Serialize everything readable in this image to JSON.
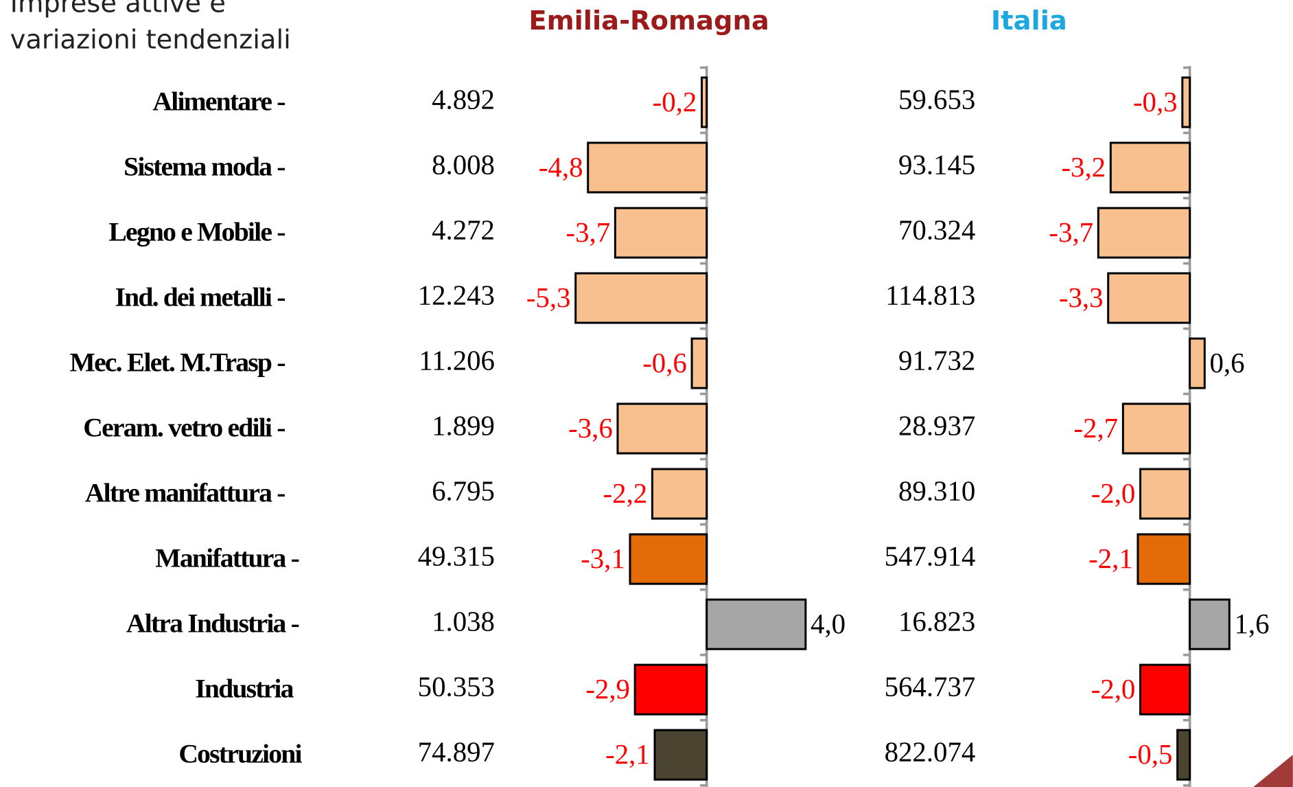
{
  "heading": [
    "Imprese attive e",
    "variazioni tendenziali"
  ],
  "categories": [
    "Alimentare -",
    "Sistema moda -",
    "Legno e Mobile -",
    "Ind. dei metalli -",
    "Mec. Elet. M.Trasp -",
    "Ceram. vetro edili -",
    "Altre manifattura -",
    "Manifattura -",
    "Altra Industria -",
    "Industria",
    "Costruzioni"
  ],
  "chart_data": [
    {
      "type": "bar",
      "title": "Emilia-Romagna",
      "title_color": "#9b1b1b",
      "counts": [
        "4.892",
        "8.008",
        "4.272",
        "12.243",
        "11.206",
        "1.899",
        "6.795",
        "49.315",
        "1.038",
        "50.353",
        "74.897"
      ],
      "values": [
        -0.2,
        -4.8,
        -3.7,
        -5.3,
        -0.6,
        -3.6,
        -2.2,
        -3.1,
        4.0,
        -2.9,
        -2.1
      ],
      "value_labels": [
        "-0,2",
        "-4,8",
        "-3,7",
        "-5,3",
        "-0,6",
        "-3,6",
        "-2,2",
        "-3,1",
        "4,0",
        "-2,9",
        "-2,1"
      ],
      "colors": [
        "#f9c08f",
        "#f9c08f",
        "#f9c08f",
        "#f9c08f",
        "#f9c08f",
        "#f9c08f",
        "#f9c08f",
        "#e36c09",
        "#a6a6a6",
        "#ff0000",
        "#4b4430"
      ],
      "label_colors": [
        "#ff0000",
        "#ff0000",
        "#ff0000",
        "#ff0000",
        "#ff0000",
        "#ff0000",
        "#ff0000",
        "#ff0000",
        "#000000",
        "#ff0000",
        "#ff0000"
      ],
      "xlim": [
        -6,
        4
      ]
    },
    {
      "type": "bar",
      "title": "Italia",
      "title_color": "#1ea8e0",
      "counts": [
        "59.653",
        "93.145",
        "70.324",
        "114.813",
        "91.732",
        "28.937",
        "89.310",
        "547.914",
        "16.823",
        "564.737",
        "822.074"
      ],
      "values": [
        -0.3,
        -3.2,
        -3.7,
        -3.3,
        0.6,
        -2.7,
        -2.0,
        -2.1,
        1.6,
        -2.0,
        -0.5
      ],
      "value_labels": [
        "-0,3",
        "-3,2",
        "-3,7",
        "-3,3",
        "0,6",
        "-2,7",
        "-2,0",
        "-2,1",
        "1,6",
        "-2,0",
        "-0,5"
      ],
      "colors": [
        "#f9c08f",
        "#f9c08f",
        "#f9c08f",
        "#f9c08f",
        "#f9c08f",
        "#f9c08f",
        "#f9c08f",
        "#e36c09",
        "#a6a6a6",
        "#ff0000",
        "#4b4430"
      ],
      "label_colors": [
        "#ff0000",
        "#ff0000",
        "#ff0000",
        "#ff0000",
        "#000000",
        "#ff0000",
        "#ff0000",
        "#ff0000",
        "#000000",
        "#ff0000",
        "#ff0000"
      ],
      "xlim": [
        -6,
        4
      ]
    }
  ]
}
